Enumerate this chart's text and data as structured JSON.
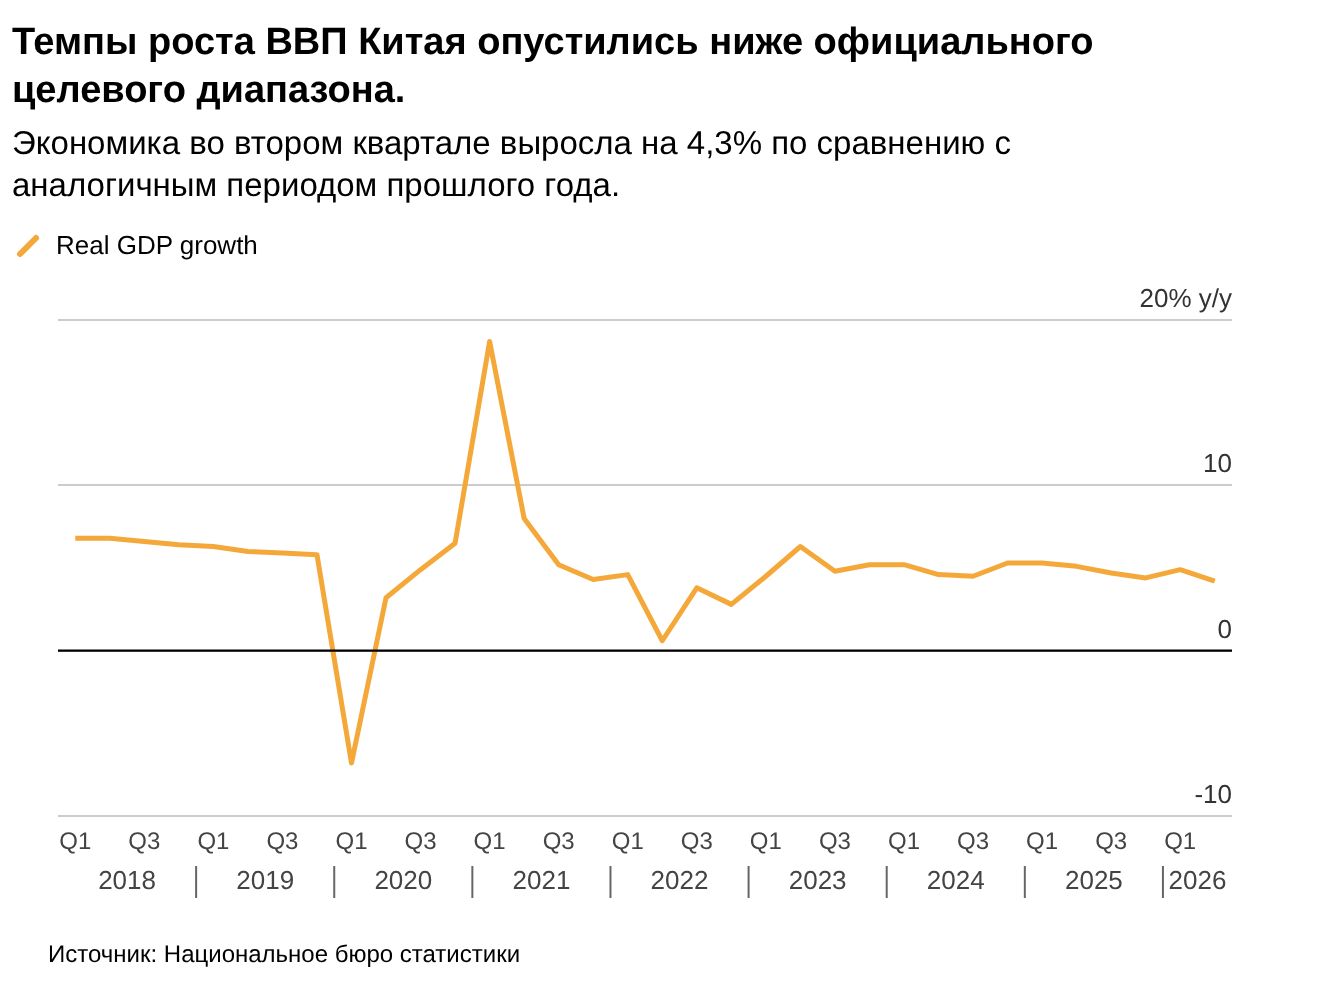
{
  "chart_data": {
    "type": "line",
    "title": "Темпы роста ВВП Китая опустились ниже официального целевого диапазона.",
    "subtitle": "Экономика во втором квартале выросла на 4,3% по сравнению с аналогичным периодом прошлого года.",
    "categories": [
      "Q1",
      null,
      "Q3",
      null,
      "Q1",
      null,
      "Q3",
      null,
      "Q1",
      null,
      "Q3",
      null,
      "Q1",
      null,
      "Q3",
      null,
      "Q1",
      null,
      "Q3",
      null,
      "Q1",
      null,
      "Q3",
      null,
      "Q1",
      null,
      "Q3",
      null,
      "Q1",
      null,
      "Q3",
      null,
      "Q1",
      null
    ],
    "series": [
      {
        "name": "Real GDP growth",
        "color": "#f5a83a",
        "values": [
          6.8,
          6.8,
          6.6,
          6.4,
          6.3,
          6.0,
          5.9,
          5.8,
          -6.8,
          3.2,
          4.9,
          6.5,
          18.7,
          8.0,
          5.2,
          4.3,
          4.6,
          0.6,
          3.8,
          2.8,
          4.5,
          6.3,
          4.8,
          5.2,
          5.2,
          4.6,
          4.5,
          5.3,
          5.3,
          5.1,
          4.7,
          4.4,
          4.9,
          4.2
        ]
      }
    ],
    "ref_lines": [
      {
        "axis": "y",
        "value": 0,
        "color": "#000000"
      }
    ],
    "ylim": [
      -10,
      20
    ],
    "yticks": [
      -10,
      0,
      10,
      {
        "value": 20,
        "label": "20% y/y"
      }
    ],
    "grid": "y",
    "legend": "top left",
    "marker": "none",
    "line_style": "solid",
    "annotations": [
      "2018",
      "2019",
      "2020",
      "2021",
      "2022",
      "2023",
      "2024",
      "2025",
      "2026",
      "Источник: Национальное бюро статистики"
    ]
  }
}
